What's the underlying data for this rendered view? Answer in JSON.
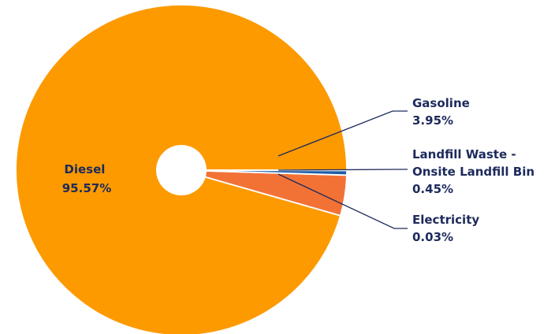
{
  "chart_data": {
    "type": "pie",
    "donut": true,
    "title": "",
    "series": [
      {
        "name": "Diesel",
        "value": 95.57,
        "label": "95.57%",
        "color": "#fd9a00"
      },
      {
        "name": "Gasoline",
        "value": 3.95,
        "label": "3.95%",
        "color": "#f27236"
      },
      {
        "name": "Landfill Waste - Onsite Landfill Bin",
        "name_lines": [
          "Landfill Waste -",
          "Onsite Landfill Bin"
        ],
        "value": 0.45,
        "label": "0.45%",
        "color": "#1c5da8"
      },
      {
        "name": "Electricity",
        "value": 0.03,
        "label": "0.03%",
        "color": "#2b4c86"
      }
    ]
  }
}
